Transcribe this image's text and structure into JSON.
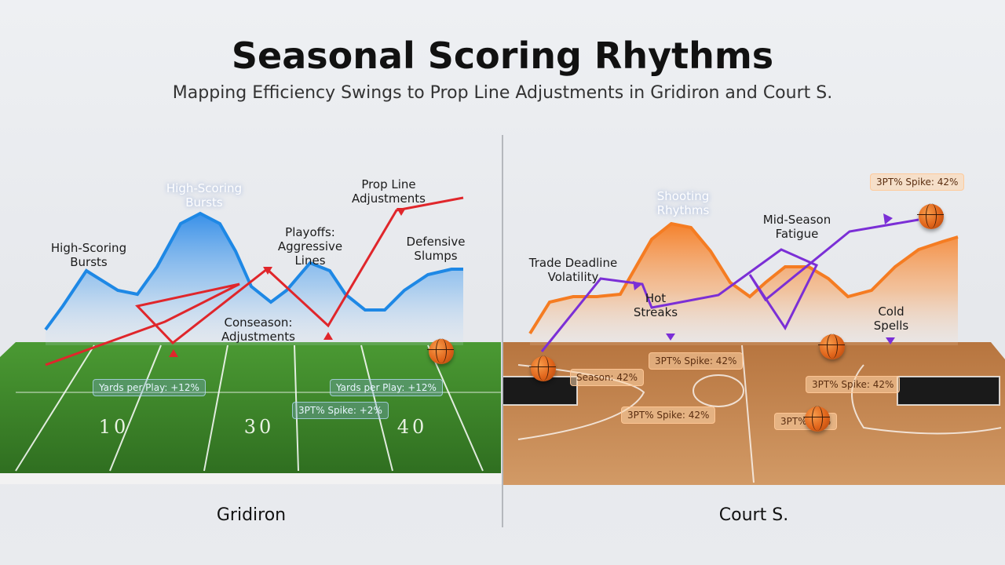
{
  "header": {
    "title": "Seasonal Scoring Rhythms",
    "subtitle": "Mapping Efficiency Swings to Prop Line Adjustments in Gridiron and Court S."
  },
  "panels": {
    "left_label": "Gridiron",
    "right_label": "Court S."
  },
  "gridiron": {
    "annotations": {
      "high_scoring_bursts_top": "High-Scoring\nBursts",
      "high_scoring_bursts_left": "High-Scoring\nBursts",
      "playoffs": "Playoffs:\nAggressive\nLines",
      "prop_line_adjustments": "Prop Line\nAdjustments",
      "defensive_slumps": "Defensive\nSlumps",
      "conseason": "Conseason:\nAdjustments"
    },
    "field_numbers": [
      "10",
      "30",
      "40"
    ],
    "tags": {
      "ypp_left": "Yards per Play: +12%",
      "ypp_right": "Yards per Play: +12%",
      "spike": "3PT% Spike: +2%"
    },
    "colors": {
      "wave": "#1e88e5",
      "line": "#e0262b",
      "field": "#3f8a2c"
    }
  },
  "court": {
    "annotations": {
      "shooting_rhythms": "Shooting\nRhythms",
      "trade_deadline": "Trade Deadline\nVolatility",
      "hot_streaks": "Hot\nStreaks",
      "mid_season": "Mid-Season\nFatigue",
      "cold_spells": "Cold\nSpells"
    },
    "tags": {
      "spike_top": "3PT% Spike: 42%",
      "spike_center": "3PT% Spike: 42%",
      "season": "Season: 42%",
      "spike_right": "3PT% Spike: 42%",
      "spike_lower": "3PT% Spike: 42%",
      "spike_bottom": "3PT% 42%"
    },
    "colors": {
      "wave": "#f57c22",
      "line": "#7b2fd6",
      "floor": "#c98a55"
    }
  }
}
